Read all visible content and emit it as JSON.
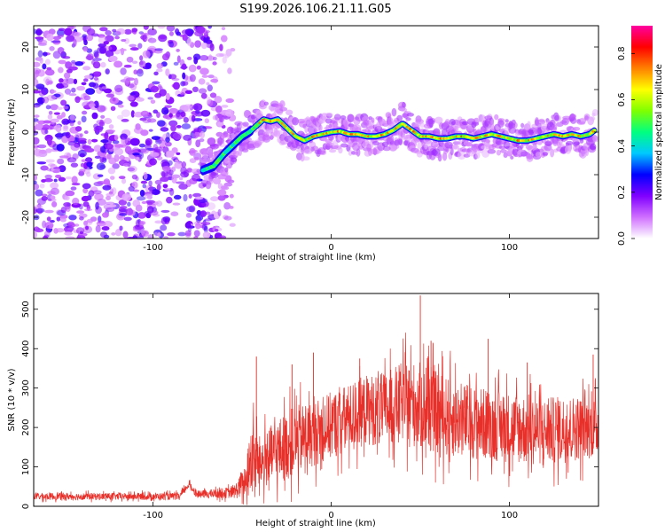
{
  "title": "S199.2026.106.21.11.G05",
  "chart_data": [
    {
      "type": "heatmap",
      "xlabel": "Height of straight line (km)",
      "ylabel": "Frequency (Hz)",
      "xlim": [
        -167,
        150
      ],
      "ylim": [
        -25,
        25
      ],
      "x_ticks": [
        -100,
        0,
        100
      ],
      "x_tick_labels": [
        "-100",
        "0",
        "100"
      ],
      "y_ticks": [
        -20,
        -10,
        0,
        10,
        20
      ],
      "y_tick_labels": [
        "-20",
        "-10",
        "0",
        "10",
        "20"
      ],
      "colorbar": {
        "label": "Normalized spectral amplitude",
        "range": [
          0,
          0.92
        ],
        "ticks": [
          0,
          0.2,
          0.4,
          0.6,
          0.8
        ],
        "tick_labels": [
          "0.0",
          "0.2",
          "0.4",
          "0.6",
          "0.8"
        ],
        "colors": [
          "#ffffff",
          "#d070ff",
          "#8000ff",
          "#0000ff",
          "#00c8ff",
          "#00ff80",
          "#80ff00",
          "#ffff00",
          "#ff8000",
          "#ff0000",
          "#ff00a0"
        ]
      },
      "ridge": {
        "x": [
          -72,
          -66,
          -60,
          -55,
          -50,
          -46,
          -42,
          -38,
          -34,
          -30,
          -25,
          -20,
          -15,
          -10,
          -5,
          0,
          5,
          10,
          15,
          20,
          25,
          30,
          35,
          40,
          45,
          50,
          55,
          60,
          65,
          70,
          75,
          80,
          85,
          90,
          95,
          100,
          105,
          110,
          115,
          120,
          125,
          130,
          135,
          140,
          145,
          148
        ],
        "y": [
          -9,
          -8,
          -5,
          -3,
          -1,
          0,
          1.5,
          3,
          2.5,
          3,
          1,
          -1,
          -2,
          -1,
          -0.5,
          0,
          0.2,
          -0.5,
          -0.5,
          -1,
          -1,
          -0.5,
          0.5,
          2,
          0.5,
          -1,
          -1,
          -1.5,
          -1.5,
          -1,
          -1,
          -1.5,
          -1,
          -0.5,
          -1,
          -1.5,
          -2,
          -2,
          -1.5,
          -1,
          -0.5,
          -1,
          -0.5,
          -1,
          -0.5,
          0.5
        ]
      },
      "noise_region": {
        "x_from": -167,
        "x_to": -55
      }
    },
    {
      "type": "line",
      "xlabel": "Height of straight line (km)",
      "ylabel": "SNR (10 * v/v)",
      "xlim": [
        -167,
        150
      ],
      "ylim": [
        0,
        540
      ],
      "x_ticks": [
        -100,
        0,
        100
      ],
      "x_tick_labels": [
        "-100",
        "0",
        "100"
      ],
      "y_ticks": [
        0,
        100,
        200,
        300,
        400,
        500
      ],
      "y_tick_labels": [
        "0",
        "100",
        "200",
        "300",
        "400",
        "500"
      ],
      "series": [
        {
          "name": "SNR",
          "color": "#e8302a",
          "envelope_x": [
            -167,
            -120,
            -85,
            -80,
            -75,
            -55,
            -48,
            -45,
            -40,
            -30,
            -20,
            -10,
            0,
            10,
            20,
            30,
            40,
            50,
            60,
            70,
            80,
            90,
            100,
            110,
            120,
            130,
            140,
            150
          ],
          "envelope_mean": [
            25,
            25,
            25,
            55,
            30,
            35,
            60,
            120,
            110,
            140,
            165,
            185,
            205,
            225,
            245,
            245,
            265,
            255,
            235,
            220,
            215,
            205,
            200,
            195,
            190,
            195,
            200,
            200
          ],
          "envelope_spread": [
            12,
            12,
            12,
            12,
            12,
            20,
            55,
            130,
            90,
            110,
            120,
            110,
            115,
            115,
            120,
            125,
            135,
            150,
            140,
            130,
            125,
            120,
            120,
            120,
            115,
            115,
            110,
            100
          ],
          "peaks": [
            {
              "x": -42,
              "y": 380
            },
            {
              "x": -22,
              "y": 360
            },
            {
              "x": -10,
              "y": 390
            },
            {
              "x": 16,
              "y": 375
            },
            {
              "x": 50,
              "y": 535
            },
            {
              "x": 56,
              "y": 420
            },
            {
              "x": 88,
              "y": 425
            },
            {
              "x": 110,
              "y": 365
            },
            {
              "x": 147,
              "y": 385
            }
          ]
        }
      ]
    }
  ]
}
